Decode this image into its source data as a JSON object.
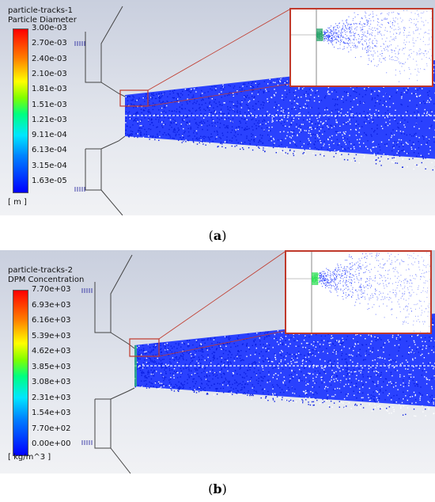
{
  "panels": [
    {
      "title_line1": "particle-tracks-1",
      "title_line2": "Particle Diameter",
      "ticks": [
        "3.00e-03",
        "2.70e-03",
        "2.40e-03",
        "2.10e-03",
        "1.81e-03",
        "1.51e-03",
        "1.21e-03",
        "9.11e-04",
        "6.13e-04",
        "3.15e-04",
        "1.63e-05"
      ],
      "unit": "[ m ]",
      "caption": "a"
    },
    {
      "title_line1": "particle-tracks-2",
      "title_line2": "DPM Concentration",
      "ticks": [
        "7.70e+03",
        "6.93e+03",
        "6.16e+03",
        "5.39e+03",
        "4.62e+03",
        "3.85e+03",
        "3.08e+03",
        "2.31e+03",
        "1.54e+03",
        "7.70e+02",
        "0.00e+00"
      ],
      "unit": "[ kg/m^3 ]",
      "caption": "b"
    }
  ],
  "colors": {
    "particles": "#1a33ff",
    "zoom_box": "#c0392b",
    "wall": "#444444"
  }
}
